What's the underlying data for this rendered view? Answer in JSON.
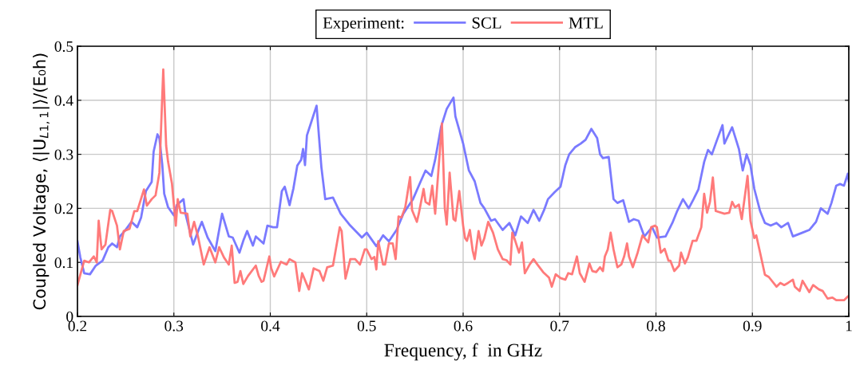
{
  "chart_data": {
    "type": "line",
    "xlabel": "Frequency, f  in GHz",
    "ylabel": "Coupled Voltage, ⟨|U$_{L1,1}$|⟩/(E₀h)",
    "legend_title": "Experiment:",
    "xlim": [
      0.2,
      1
    ],
    "xticks": [
      0.2,
      0.3,
      0.4,
      0.5,
      0.6,
      0.7,
      0.8,
      0.9,
      {
        "value": 1,
        "label": "1"
      }
    ],
    "ylim": [
      0,
      0.5
    ],
    "yticks": [
      {
        "value": 0,
        "label": "0"
      },
      0.1,
      0.2,
      0.3,
      0.4,
      0.5
    ],
    "grid": true,
    "legend": "top",
    "marker": "none",
    "line_style": "solid",
    "series": [
      {
        "name": "SCL",
        "color": "#7373ff",
        "x": [
          0.2,
          0.203,
          0.207,
          0.213,
          0.219,
          0.226,
          0.232,
          0.236,
          0.241,
          0.244,
          0.249,
          0.256,
          0.262,
          0.266,
          0.271,
          0.277,
          0.279,
          0.283,
          0.285,
          0.288,
          0.29,
          0.294,
          0.3,
          0.303,
          0.31,
          0.312,
          0.32,
          0.326,
          0.329,
          0.335,
          0.343,
          0.35,
          0.357,
          0.361,
          0.368,
          0.372,
          0.376,
          0.382,
          0.385,
          0.393,
          0.397,
          0.403,
          0.407,
          0.412,
          0.415,
          0.42,
          0.424,
          0.428,
          0.432,
          0.434,
          0.436,
          0.438,
          0.442,
          0.448,
          0.453,
          0.457,
          0.465,
          0.473,
          0.482,
          0.495,
          0.5,
          0.51,
          0.517,
          0.523,
          0.531,
          0.538,
          0.548,
          0.556,
          0.561,
          0.567,
          0.571,
          0.577,
          0.583,
          0.59,
          0.592,
          0.596,
          0.6,
          0.606,
          0.612,
          0.618,
          0.622,
          0.629,
          0.633,
          0.641,
          0.648,
          0.654,
          0.66,
          0.667,
          0.673,
          0.679,
          0.684,
          0.688,
          0.695,
          0.701,
          0.706,
          0.71,
          0.716,
          0.722,
          0.727,
          0.733,
          0.739,
          0.742,
          0.745,
          0.751,
          0.756,
          0.76,
          0.766,
          0.772,
          0.777,
          0.782,
          0.788,
          0.796,
          0.801,
          0.81,
          0.817,
          0.822,
          0.828,
          0.834,
          0.839,
          0.844,
          0.85,
          0.854,
          0.858,
          0.863,
          0.869,
          0.871,
          0.879,
          0.886,
          0.89,
          0.894,
          0.898,
          0.902,
          0.908,
          0.913,
          0.919,
          0.925,
          0.93,
          0.937,
          0.942,
          0.952,
          0.959,
          0.966,
          0.971,
          0.978,
          0.982,
          0.987,
          0.991,
          0.995,
          0.999,
          1.0
        ],
        "values": [
          0.139,
          0.109,
          0.08,
          0.078,
          0.094,
          0.103,
          0.128,
          0.135,
          0.128,
          0.148,
          0.158,
          0.175,
          0.165,
          0.183,
          0.232,
          0.249,
          0.305,
          0.337,
          0.33,
          0.28,
          0.227,
          0.202,
          0.187,
          0.206,
          0.217,
          0.19,
          0.133,
          0.162,
          0.175,
          0.146,
          0.121,
          0.19,
          0.148,
          0.146,
          0.118,
          0.14,
          0.158,
          0.131,
          0.148,
          0.135,
          0.168,
          0.165,
          0.165,
          0.232,
          0.24,
          0.206,
          0.237,
          0.279,
          0.29,
          0.31,
          0.28,
          0.335,
          0.357,
          0.39,
          0.276,
          0.217,
          0.22,
          0.19,
          0.17,
          0.146,
          0.155,
          0.13,
          0.15,
          0.139,
          0.16,
          0.19,
          0.217,
          0.25,
          0.27,
          0.26,
          0.29,
          0.35,
          0.384,
          0.405,
          0.37,
          0.345,
          0.32,
          0.27,
          0.25,
          0.21,
          0.2,
          0.177,
          0.18,
          0.16,
          0.173,
          0.15,
          0.185,
          0.173,
          0.197,
          0.177,
          0.197,
          0.217,
          0.23,
          0.24,
          0.28,
          0.3,
          0.313,
          0.32,
          0.327,
          0.347,
          0.33,
          0.3,
          0.293,
          0.295,
          0.217,
          0.21,
          0.215,
          0.175,
          0.18,
          0.177,
          0.148,
          0.165,
          0.146,
          0.148,
          0.173,
          0.195,
          0.217,
          0.2,
          0.217,
          0.235,
          0.286,
          0.308,
          0.3,
          0.325,
          0.354,
          0.32,
          0.35,
          0.31,
          0.27,
          0.3,
          0.28,
          0.236,
          0.195,
          0.173,
          0.168,
          0.173,
          0.165,
          0.173,
          0.148,
          0.155,
          0.16,
          0.175,
          0.2,
          0.19,
          0.21,
          0.242,
          0.245,
          0.242,
          0.264,
          0.25
        ]
      },
      {
        "name": "MTL",
        "color": "#ff7373",
        "x": [
          0.2,
          0.204,
          0.207,
          0.212,
          0.217,
          0.22,
          0.222,
          0.225,
          0.229,
          0.234,
          0.236,
          0.241,
          0.244,
          0.248,
          0.254,
          0.259,
          0.262,
          0.269,
          0.272,
          0.277,
          0.281,
          0.285,
          0.289,
          0.292,
          0.294,
          0.298,
          0.302,
          0.304,
          0.307,
          0.314,
          0.317,
          0.321,
          0.325,
          0.331,
          0.337,
          0.343,
          0.347,
          0.352,
          0.357,
          0.36,
          0.363,
          0.366,
          0.369,
          0.372,
          0.377,
          0.385,
          0.388,
          0.391,
          0.393,
          0.399,
          0.401,
          0.404,
          0.411,
          0.417,
          0.42,
          0.426,
          0.43,
          0.433,
          0.44,
          0.445,
          0.451,
          0.455,
          0.459,
          0.465,
          0.472,
          0.474,
          0.478,
          0.483,
          0.488,
          0.493,
          0.498,
          0.5,
          0.505,
          0.508,
          0.51,
          0.512,
          0.517,
          0.519,
          0.523,
          0.527,
          0.53,
          0.533,
          0.536,
          0.54,
          0.545,
          0.547,
          0.552,
          0.554,
          0.559,
          0.561,
          0.565,
          0.568,
          0.571,
          0.578,
          0.581,
          0.583,
          0.586,
          0.59,
          0.592,
          0.596,
          0.6,
          0.602,
          0.604,
          0.607,
          0.61,
          0.612,
          0.616,
          0.619,
          0.622,
          0.626,
          0.631,
          0.636,
          0.641,
          0.645,
          0.649,
          0.651,
          0.654,
          0.658,
          0.661,
          0.664,
          0.669,
          0.673,
          0.677,
          0.683,
          0.689,
          0.692,
          0.696,
          0.701,
          0.706,
          0.709,
          0.713,
          0.718,
          0.721,
          0.726,
          0.731,
          0.734,
          0.738,
          0.742,
          0.745,
          0.747,
          0.75,
          0.753,
          0.756,
          0.76,
          0.764,
          0.767,
          0.77,
          0.772,
          0.776,
          0.781,
          0.786,
          0.792,
          0.795,
          0.799,
          0.801,
          0.805,
          0.809,
          0.813,
          0.815,
          0.819,
          0.824,
          0.826,
          0.83,
          0.833,
          0.838,
          0.842,
          0.847,
          0.85,
          0.853,
          0.856,
          0.859,
          0.862,
          0.871,
          0.876,
          0.879,
          0.882,
          0.886,
          0.889,
          0.895,
          0.898,
          0.902,
          0.904,
          0.908,
          0.913,
          0.917,
          0.925,
          0.929,
          0.933,
          0.937,
          0.942,
          0.944,
          0.949,
          0.952,
          0.959,
          0.963,
          0.969,
          0.973,
          0.978,
          0.983,
          0.987,
          0.995,
          0.999,
          1.0
        ],
        "values": [
          0.058,
          0.084,
          0.103,
          0.1,
          0.111,
          0.1,
          0.177,
          0.124,
          0.133,
          0.197,
          0.195,
          0.168,
          0.124,
          0.158,
          0.162,
          0.195,
          0.195,
          0.235,
          0.205,
          0.217,
          0.224,
          0.266,
          0.457,
          0.316,
          0.286,
          0.246,
          0.168,
          0.217,
          0.192,
          0.19,
          0.148,
          0.175,
          0.148,
          0.096,
          0.128,
          0.1,
          0.128,
          0.109,
          0.096,
          0.131,
          0.062,
          0.064,
          0.084,
          0.06,
          0.075,
          0.094,
          0.075,
          0.064,
          0.066,
          0.111,
          0.089,
          0.074,
          0.101,
          0.096,
          0.106,
          0.1,
          0.047,
          0.08,
          0.05,
          0.089,
          0.084,
          0.066,
          0.091,
          0.094,
          0.165,
          0.158,
          0.07,
          0.106,
          0.106,
          0.096,
          0.124,
          0.124,
          0.106,
          0.11,
          0.087,
          0.139,
          0.096,
          0.096,
          0.135,
          0.135,
          0.106,
          0.185,
          0.183,
          0.202,
          0.258,
          0.197,
          0.175,
          0.19,
          0.236,
          0.212,
          0.207,
          0.242,
          0.19,
          0.357,
          0.2,
          0.17,
          0.266,
          0.18,
          0.177,
          0.232,
          0.168,
          0.145,
          0.14,
          0.16,
          0.121,
          0.106,
          0.158,
          0.131,
          0.145,
          0.175,
          0.155,
          0.124,
          0.106,
          0.104,
          0.096,
          0.155,
          0.14,
          0.118,
          0.137,
          0.08,
          0.096,
          0.106,
          0.096,
          0.082,
          0.072,
          0.055,
          0.078,
          0.071,
          0.068,
          0.08,
          0.078,
          0.111,
          0.08,
          0.064,
          0.098,
          0.084,
          0.082,
          0.091,
          0.084,
          0.111,
          0.124,
          0.155,
          0.124,
          0.091,
          0.096,
          0.111,
          0.135,
          0.111,
          0.091,
          0.118,
          0.15,
          0.137,
          0.165,
          0.168,
          0.165,
          0.118,
          0.125,
          0.103,
          0.103,
          0.084,
          0.094,
          0.118,
          0.098,
          0.109,
          0.14,
          0.14,
          0.165,
          0.227,
          0.192,
          0.212,
          0.257,
          0.195,
          0.19,
          0.192,
          0.212,
          0.202,
          0.207,
          0.18,
          0.26,
          0.177,
          0.145,
          0.15,
          0.118,
          0.077,
          0.073,
          0.055,
          0.062,
          0.058,
          0.062,
          0.068,
          0.055,
          0.047,
          0.066,
          0.045,
          0.058,
          0.05,
          0.047,
          0.033,
          0.035,
          0.03,
          0.03,
          0.037,
          0.038
        ]
      }
    ]
  }
}
